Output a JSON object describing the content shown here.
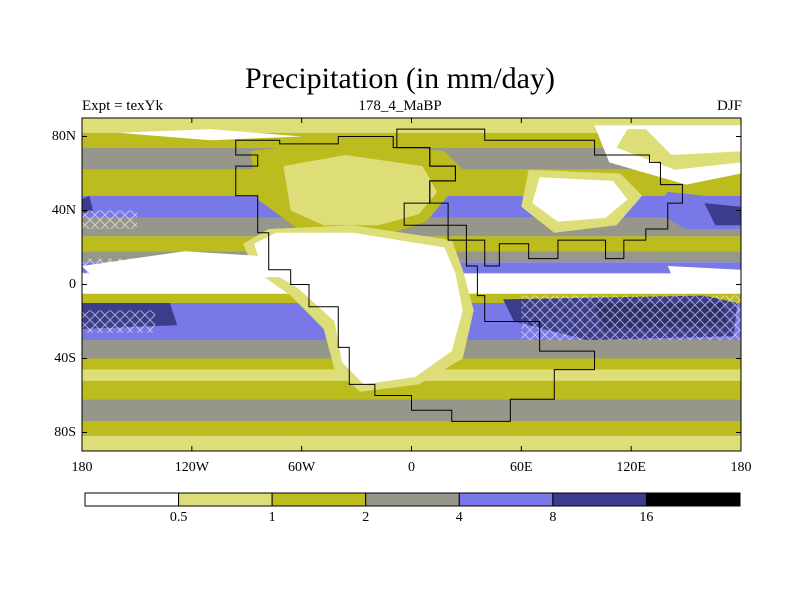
{
  "title": "Precipitation (in mm/day)",
  "subtitle_left": "Expt = texYk",
  "subtitle_center": "178_4_MaBP",
  "subtitle_right": "DJF",
  "chart_data": {
    "type": "heatmap",
    "title": "Precipitation (in mm/day)",
    "xlabel": "",
    "ylabel": "",
    "xlim": [
      -180,
      180
    ],
    "ylim": [
      -90,
      90
    ],
    "x_ticks": [
      {
        "value": -180,
        "label": "180"
      },
      {
        "value": -120,
        "label": "120W"
      },
      {
        "value": -60,
        "label": "60W"
      },
      {
        "value": 0,
        "label": "0"
      },
      {
        "value": 60,
        "label": "60E"
      },
      {
        "value": 120,
        "label": "120E"
      },
      {
        "value": 180,
        "label": "180"
      }
    ],
    "y_ticks": [
      {
        "value": 80,
        "label": "80N"
      },
      {
        "value": 40,
        "label": "40N"
      },
      {
        "value": 0,
        "label": "0"
      },
      {
        "value": -40,
        "label": "40S"
      },
      {
        "value": -80,
        "label": "80S"
      }
    ],
    "colorbar": {
      "levels": [
        "0.5",
        "1",
        "2",
        "4",
        "8",
        "16"
      ],
      "colors": [
        "#ffffff",
        "#dede78",
        "#bcbc1e",
        "#96968a",
        "#7878e6",
        "#3c3c8c",
        "#000000"
      ]
    }
  }
}
